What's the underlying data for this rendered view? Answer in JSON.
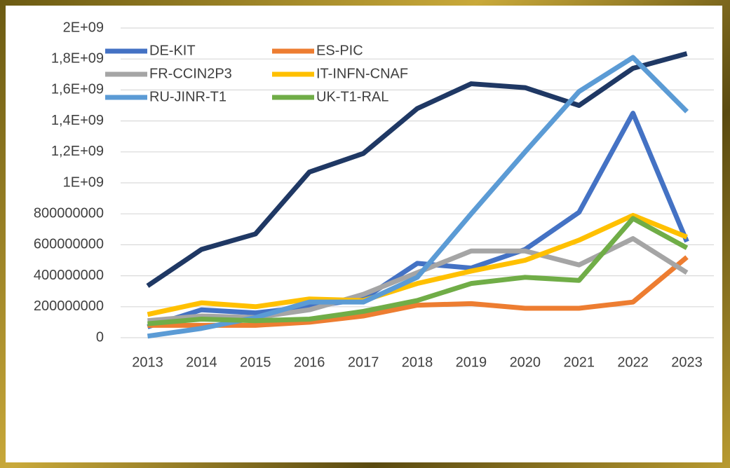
{
  "chart_data": {
    "type": "line",
    "categories": [
      "2013",
      "2014",
      "2015",
      "2016",
      "2017",
      "2018",
      "2019",
      "2020",
      "2021",
      "2022",
      "2023"
    ],
    "series": [
      {
        "color": "#1f3864",
        "values": [
          335000000,
          570000000,
          670000000,
          1070000000,
          1190000000,
          1480000000,
          1640000000,
          1615000000,
          1500000000,
          1740000000,
          1835000000
        ]
      },
      {
        "name": "DE-KIT",
        "color": "#4472c4",
        "values": [
          70000000,
          180000000,
          160000000,
          200000000,
          250000000,
          480000000,
          450000000,
          570000000,
          810000000,
          1450000000,
          620000000
        ]
      },
      {
        "name": "ES-PIC",
        "color": "#ed7d31",
        "values": [
          80000000,
          80000000,
          80000000,
          100000000,
          140000000,
          210000000,
          220000000,
          190000000,
          190000000,
          230000000,
          520000000
        ]
      },
      {
        "name": "FR-CCIN2P3",
        "color": "#a5a5a5",
        "values": [
          110000000,
          140000000,
          130000000,
          180000000,
          280000000,
          420000000,
          560000000,
          560000000,
          470000000,
          640000000,
          420000000
        ]
      },
      {
        "name": "IT-INFN-CNAF",
        "color": "#ffc000",
        "values": [
          150000000,
          225000000,
          200000000,
          250000000,
          240000000,
          350000000,
          430000000,
          500000000,
          630000000,
          790000000,
          650000000
        ]
      },
      {
        "name": "RU-JINR-T1",
        "color": "#5b9bd5",
        "values": [
          10000000,
          60000000,
          130000000,
          230000000,
          230000000,
          390000000,
          800000000,
          1200000000,
          1590000000,
          1810000000,
          1460000000
        ]
      },
      {
        "name": "UK-T1-RAL",
        "color": "#70ad47",
        "values": [
          90000000,
          120000000,
          110000000,
          120000000,
          170000000,
          240000000,
          350000000,
          390000000,
          370000000,
          770000000,
          580000000
        ]
      }
    ],
    "ylim": [
      0,
      2000000000
    ],
    "yticks": [
      0,
      200000000,
      400000000,
      600000000,
      800000000,
      {
        "value": 1000000000,
        "label": "1E+09"
      },
      {
        "value": 1200000000,
        "label": "1,2E+09"
      },
      {
        "value": 1400000000,
        "label": "1,4E+09"
      },
      {
        "value": 1600000000,
        "label": "1,6E+09"
      },
      {
        "value": 1800000000,
        "label": "1,8E+09"
      },
      {
        "value": 2000000000,
        "label": "2E+09"
      }
    ],
    "grid": true,
    "legend": "top-left"
  }
}
